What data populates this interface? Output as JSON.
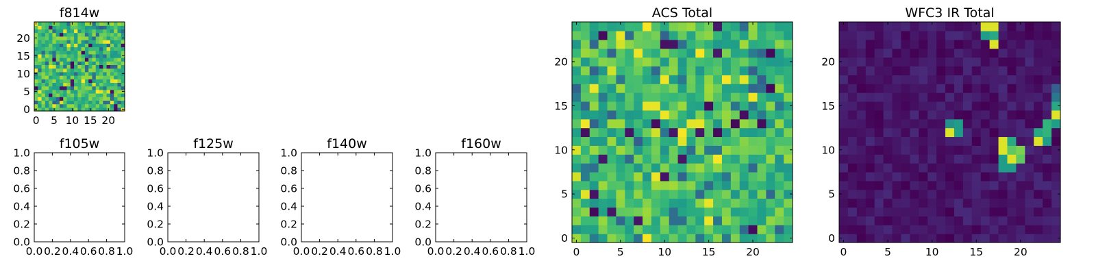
{
  "chart_data": [
    {
      "type": "heatmap",
      "title": "f814w",
      "x_ticks": [
        0,
        5,
        10,
        15,
        20
      ],
      "y_ticks": [
        0,
        5,
        10,
        15,
        20
      ],
      "xlim": [
        -0.5,
        24.5
      ],
      "ylim": [
        -0.5,
        24.5
      ],
      "grid_shape": [
        25,
        25
      ],
      "colormap": "viridis",
      "pattern": "noise",
      "grid": false
    },
    {
      "type": "heatmap",
      "title": "f105w",
      "empty": true,
      "x_ticks": [
        "0.0",
        "0.2",
        "0.4",
        "0.6",
        "0.8",
        "1.0"
      ],
      "y_ticks": [
        "0.0",
        "0.2",
        "0.4",
        "0.6",
        "0.8",
        "1.0"
      ],
      "xlim": [
        0,
        1
      ],
      "ylim": [
        0,
        1
      ]
    },
    {
      "type": "heatmap",
      "title": "f125w",
      "empty": true,
      "x_ticks": [
        "0.0",
        "0.2",
        "0.4",
        "0.6",
        "0.8",
        "1.0"
      ],
      "y_ticks": [
        "0.0",
        "0.2",
        "0.4",
        "0.6",
        "0.8",
        "1.0"
      ],
      "xlim": [
        0,
        1
      ],
      "ylim": [
        0,
        1
      ]
    },
    {
      "type": "heatmap",
      "title": "f140w",
      "empty": true,
      "x_ticks": [
        "0.0",
        "0.2",
        "0.4",
        "0.6",
        "0.8",
        "1.0"
      ],
      "y_ticks": [
        "0.0",
        "0.2",
        "0.4",
        "0.6",
        "0.8",
        "1.0"
      ],
      "xlim": [
        0,
        1
      ],
      "ylim": [
        0,
        1
      ]
    },
    {
      "type": "heatmap",
      "title": "f160w",
      "empty": true,
      "x_ticks": [
        "0.0",
        "0.2",
        "0.4",
        "0.6",
        "0.8",
        "1.0"
      ],
      "y_ticks": [
        "0.0",
        "0.2",
        "0.4",
        "0.6",
        "0.8",
        "1.0"
      ],
      "xlim": [
        0,
        1
      ],
      "ylim": [
        0,
        1
      ]
    },
    {
      "type": "heatmap",
      "title": "ACS Total",
      "x_ticks": [
        0,
        5,
        10,
        15,
        20
      ],
      "y_ticks": [
        0,
        5,
        10,
        15,
        20
      ],
      "xlim": [
        -0.5,
        24.5
      ],
      "ylim": [
        -0.5,
        24.5
      ],
      "grid_shape": [
        25,
        25
      ],
      "colormap": "viridis",
      "pattern": "noise",
      "grid": false
    },
    {
      "type": "heatmap",
      "title": "WFC3 IR Total",
      "x_ticks": [
        0,
        5,
        10,
        15,
        20
      ],
      "y_ticks": [
        0,
        5,
        10,
        15,
        20
      ],
      "xlim": [
        -0.5,
        24.5
      ],
      "ylim": [
        -0.5,
        24.5
      ],
      "grid_shape": [
        25,
        25
      ],
      "colormap": "viridis",
      "pattern": "background",
      "grid": false,
      "bright_pixels": [
        {
          "x": 16,
          "y": 24,
          "v": 0.95
        },
        {
          "x": 17,
          "y": 24,
          "v": 0.95
        },
        {
          "x": 16,
          "y": 23,
          "v": 0.55
        },
        {
          "x": 17,
          "y": 23,
          "v": 0.6
        },
        {
          "x": 17,
          "y": 22,
          "v": 0.95
        },
        {
          "x": 12,
          "y": 13,
          "v": 0.5
        },
        {
          "x": 13,
          "y": 13,
          "v": 0.55
        },
        {
          "x": 12,
          "y": 12,
          "v": 0.95
        },
        {
          "x": 13,
          "y": 12,
          "v": 0.55
        },
        {
          "x": 18,
          "y": 11,
          "v": 0.95
        },
        {
          "x": 19,
          "y": 11,
          "v": 0.6
        },
        {
          "x": 18,
          "y": 10,
          "v": 0.95
        },
        {
          "x": 19,
          "y": 10,
          "v": 0.75
        },
        {
          "x": 20,
          "y": 10,
          "v": 0.8
        },
        {
          "x": 18,
          "y": 9,
          "v": 0.55
        },
        {
          "x": 19,
          "y": 9,
          "v": 0.95
        },
        {
          "x": 20,
          "y": 9,
          "v": 0.75
        },
        {
          "x": 18,
          "y": 8,
          "v": 0.55
        },
        {
          "x": 19,
          "y": 8,
          "v": 0.55
        },
        {
          "x": 23,
          "y": 13,
          "v": 0.65
        },
        {
          "x": 24,
          "y": 13,
          "v": 0.55
        },
        {
          "x": 22,
          "y": 12,
          "v": 0.6
        },
        {
          "x": 23,
          "y": 12,
          "v": 0.65
        },
        {
          "x": 22,
          "y": 11,
          "v": 0.95
        },
        {
          "x": 23,
          "y": 11,
          "v": 0.55
        },
        {
          "x": 24,
          "y": 14,
          "v": 0.95
        },
        {
          "x": 24,
          "y": 15,
          "v": 0.6
        },
        {
          "x": 24,
          "y": 16,
          "v": 0.4
        },
        {
          "x": 24,
          "y": 17,
          "v": 0.3
        }
      ]
    }
  ]
}
